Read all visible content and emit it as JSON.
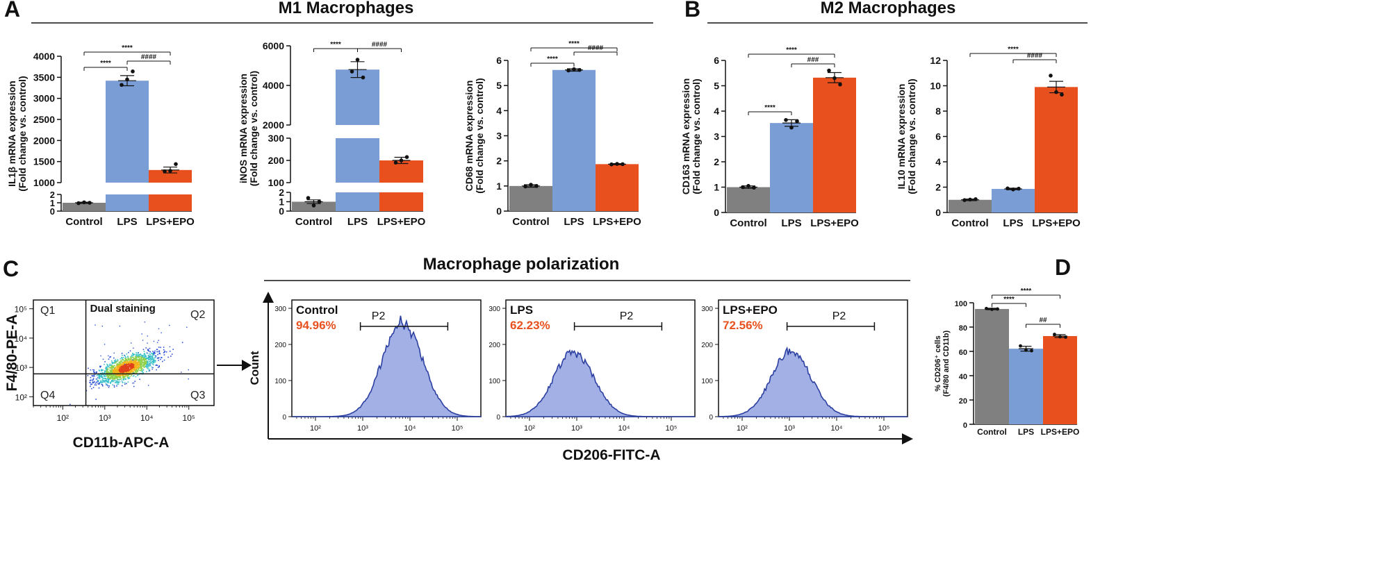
{
  "panels": {
    "A": {
      "letter": "A",
      "title": "M1 Macrophages"
    },
    "B": {
      "letter": "B",
      "title": "M2 Macrophages"
    },
    "C": {
      "letter": "C",
      "title": "Macrophage polarization"
    },
    "D": {
      "letter": "D"
    }
  },
  "colors": {
    "control": "#808080",
    "lps": "#7b9dd6",
    "lps_epo": "#e8501e",
    "hist_fill": "#a3b0e6",
    "hist_line": "#2b3fa0",
    "pct_text": "#e8501e"
  },
  "chart_data": [
    {
      "id": "il1b",
      "type": "bar",
      "panel": "A",
      "categories": [
        "Control",
        "LPS",
        "LPS+EPO"
      ],
      "values": [
        1.0,
        3420,
        1300
      ],
      "errors": [
        0.08,
        120,
        70
      ],
      "points": [
        [
          0.95,
          1.05,
          1.0
        ],
        [
          3320,
          3450,
          3640
        ],
        [
          1270,
          1280,
          1440
        ]
      ],
      "ylabel": [
        "IL1β mRNA expression",
        "(Fold change vs. control)"
      ],
      "broken_axis": {
        "lower_range": [
          0,
          2
        ],
        "lower_ticks": [
          "0",
          "1",
          "2"
        ],
        "upper_range": [
          1000,
          4000
        ],
        "upper_ticks": [
          "1000",
          "1500",
          "2000",
          "2500",
          "3000",
          "3500",
          "4000"
        ]
      },
      "significance": [
        {
          "from": 0,
          "to": 1,
          "label": "****"
        },
        {
          "from": 0,
          "to": 2,
          "label": "****"
        },
        {
          "from": 1,
          "to": 2,
          "label": "####"
        }
      ]
    },
    {
      "id": "inos",
      "type": "bar",
      "panel": "A",
      "categories": [
        "Control",
        "LPS",
        "LPS+EPO"
      ],
      "values": [
        1.0,
        4800,
        200
      ],
      "errors": [
        0.2,
        400,
        14
      ],
      "points": [
        [
          1.4,
          0.6,
          1.0
        ],
        [
          4700,
          5300,
          4400
        ],
        [
          190,
          200,
          215
        ]
      ],
      "ylabel": [
        "iNOS mRNA expression",
        "(Fold change vs. control)"
      ],
      "broken_axis": {
        "lower_range": [
          0,
          2
        ],
        "lower_ticks": [
          "0",
          "1",
          "2"
        ],
        "mid_range": [
          100,
          300
        ],
        "mid_ticks": [
          "100",
          "200",
          "300"
        ],
        "upper_range": [
          2000,
          6000
        ],
        "upper_ticks": [
          "2000",
          "4000",
          "6000"
        ]
      },
      "significance": [
        {
          "from": 0,
          "to": 1,
          "label": "****"
        },
        {
          "from": 1,
          "to": 2,
          "label": "####"
        }
      ]
    },
    {
      "id": "cd68",
      "type": "bar",
      "panel": "A",
      "categories": [
        "Control",
        "LPS",
        "LPS+EPO"
      ],
      "values": [
        1.0,
        5.62,
        1.87
      ],
      "errors": [
        0.05,
        0.05,
        0.02
      ],
      "points": [
        [
          0.98,
          1.05,
          1.0
        ],
        [
          5.6,
          5.65,
          5.62
        ],
        [
          1.86,
          1.88,
          1.87
        ]
      ],
      "ylabel": [
        "CD68 mRNA expression",
        "(Fold change vs. control)"
      ],
      "ylim": [
        0,
        6
      ],
      "yticks": [
        "0",
        "1",
        "2",
        "3",
        "4",
        "5",
        "6"
      ],
      "significance": [
        {
          "from": 0,
          "to": 1,
          "label": "****"
        },
        {
          "from": 0,
          "to": 2,
          "label": "****"
        },
        {
          "from": 1,
          "to": 2,
          "label": "####"
        }
      ]
    },
    {
      "id": "cd163",
      "type": "bar",
      "panel": "B",
      "categories": [
        "Control",
        "LPS",
        "LPS+EPO"
      ],
      "values": [
        1.0,
        3.53,
        5.32
      ],
      "errors": [
        0.05,
        0.13,
        0.2
      ],
      "points": [
        [
          1.0,
          1.05,
          0.98
        ],
        [
          3.65,
          3.35,
          3.6
        ],
        [
          5.6,
          5.3,
          5.05
        ]
      ],
      "ylabel": [
        "CD163 mRNA expression",
        "(Fold change vs. control)"
      ],
      "ylim": [
        0,
        6
      ],
      "yticks": [
        "0",
        "1",
        "2",
        "3",
        "4",
        "5",
        "6"
      ],
      "significance": [
        {
          "from": 0,
          "to": 1,
          "label": "****"
        },
        {
          "from": 0,
          "to": 2,
          "label": "****"
        },
        {
          "from": 1,
          "to": 2,
          "label": "###"
        }
      ]
    },
    {
      "id": "il10",
      "type": "bar",
      "panel": "B",
      "categories": [
        "Control",
        "LPS",
        "LPS+EPO"
      ],
      "values": [
        1.0,
        1.86,
        9.9
      ],
      "errors": [
        0.06,
        0.06,
        0.45
      ],
      "points": [
        [
          0.98,
          1.02,
          1.05
        ],
        [
          1.9,
          1.82,
          1.88
        ],
        [
          10.8,
          9.5,
          9.3
        ]
      ],
      "ylabel": [
        "IL10 mRNA expression",
        "(Fold change vs. control)"
      ],
      "ylim": [
        0,
        12
      ],
      "yticks": [
        "0",
        "2",
        "4",
        "6",
        "8",
        "10",
        "12"
      ],
      "significance": [
        {
          "from": 0,
          "to": 2,
          "label": "****"
        },
        {
          "from": 1,
          "to": 2,
          "label": "####"
        }
      ]
    },
    {
      "id": "cd206pct",
      "type": "bar",
      "panel": "D",
      "categories": [
        "Control",
        "LPS",
        "LPS+EPO"
      ],
      "values": [
        94.9,
        62.2,
        72.6
      ],
      "errors": [
        0.6,
        2.0,
        1.2
      ],
      "points": [
        [
          95.3,
          94.6,
          94.9
        ],
        [
          64.5,
          61.0,
          60.5
        ],
        [
          74.0,
          72.0,
          71.7
        ]
      ],
      "ylabel": [
        "% CD206⁺ cells",
        "(F4/80 and CD11b)"
      ],
      "ylim": [
        0,
        100
      ],
      "yticks": [
        "0",
        "20",
        "40",
        "60",
        "80",
        "100"
      ],
      "significance": [
        {
          "from": 0,
          "to": 1,
          "label": "****"
        },
        {
          "from": 0,
          "to": 2,
          "label": "****"
        },
        {
          "from": 1,
          "to": 2,
          "label": "##"
        }
      ]
    }
  ],
  "flow": {
    "scatter": {
      "title": "Dual staining",
      "xlabel": "CD11b-APC-A",
      "ylabel": "F4/80-PE-A",
      "quadrants": [
        "Q1",
        "Q2",
        "Q3",
        "Q4"
      ],
      "x_ticks": [
        "10²",
        "10³",
        "10⁴",
        "10⁵"
      ],
      "y_ticks": [
        "10²",
        "10³",
        "10⁴",
        "10⁵"
      ],
      "x_log_range": [
        1.3,
        5.6
      ],
      "y_log_range": [
        1.7,
        5.3
      ],
      "gate": {
        "x": 2.55,
        "y": 2.78
      },
      "cluster_center": {
        "x": 3.5,
        "y": 3.0
      }
    },
    "histograms": {
      "xlabel": "CD206-FITC-A",
      "ylabel": "Count",
      "x_ticks": [
        "10²",
        "10³",
        "10⁴",
        "10⁵"
      ],
      "y_ticks": [
        "0",
        "100",
        "200",
        "300"
      ],
      "x_log_range": [
        1.5,
        5.5
      ],
      "gate_label": "P2",
      "samples": [
        {
          "name": "Control",
          "percent": "94.96%",
          "peak_log": 3.85,
          "peak": 270,
          "gate": [
            2.95,
            4.8
          ]
        },
        {
          "name": "LPS",
          "percent": "62.23%",
          "peak_log": 2.95,
          "peak": 185,
          "gate": [
            2.95,
            4.8
          ]
        },
        {
          "name": "LPS+EPO",
          "percent": "72.56%",
          "peak_log": 3.05,
          "peak": 185,
          "gate": [
            2.95,
            4.8
          ]
        }
      ]
    }
  }
}
